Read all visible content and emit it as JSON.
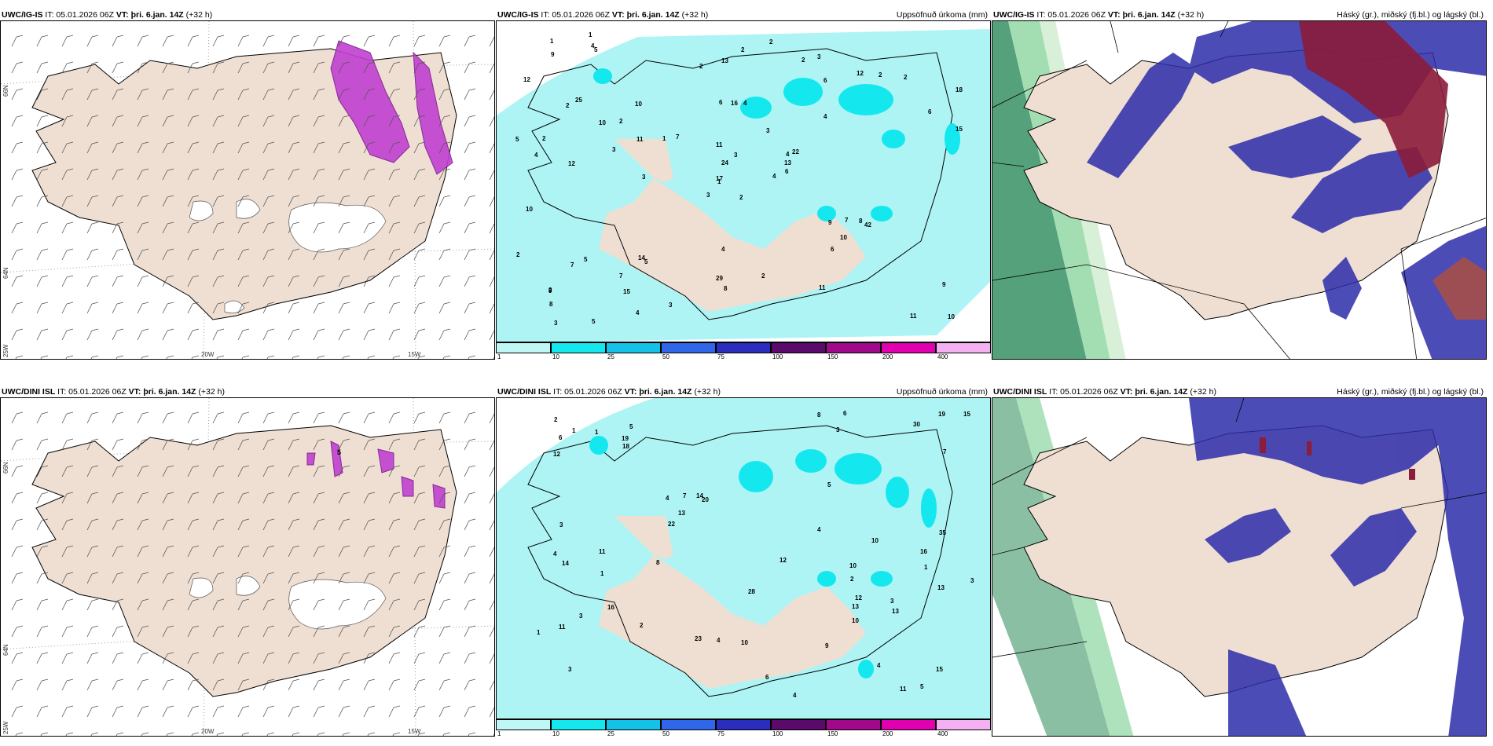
{
  "rows": [
    {
      "model": "UWC/IG-IS",
      "it": "IT: 05.01.2026 06Z",
      "vt_label": "VT:",
      "vt": "þri. 6.jan. 14Z",
      "lead": "(+32 h)"
    },
    {
      "model": "UWC/DINI ISL",
      "it": "IT: 05.01.2026 06Z",
      "vt_label": "VT:",
      "vt": "þri. 6.jan. 14Z",
      "lead": "(+32 h)"
    }
  ],
  "panel_titles": {
    "precip": "Uppsöfnuð úrkoma (mm)",
    "cloud": "Háský (gr.), miðský (fj.bl.) og lágský (bl.)"
  },
  "axis_labels": {
    "lon_20w": "20W",
    "lon_15w": "15W",
    "lat_66n": "66N",
    "lat_64n": "64N",
    "lon_25w": "25W"
  },
  "colorbar": {
    "ticks": [
      "1",
      "10",
      "25",
      "50",
      "75",
      "100",
      "150",
      "200",
      "400"
    ],
    "colors": [
      "#bff7f7",
      "#14e8ee",
      "#13c2e6",
      "#2f67e8",
      "#2a2dbd",
      "#5a0a6a",
      "#a00a8a",
      "#e000b0",
      "#f4b0f0"
    ]
  },
  "colors": {
    "land": "#efdfd2",
    "sea_wet": "#aef4f4",
    "wind_snow": "#c040d0",
    "high_cloud": "#8b1c3a",
    "mid_cloud": "#2d2daa",
    "low_cloud": "#2a8a5a"
  },
  "precip_top": [
    "2",
    "2",
    "1",
    "2",
    "4",
    "5",
    "3",
    "4",
    "6",
    "4",
    "5",
    "10",
    "12",
    "18",
    "3",
    "4",
    "5",
    "6",
    "3",
    "5",
    "7",
    "8",
    "15",
    "16",
    "22",
    "42",
    "25",
    "13",
    "4",
    "9",
    "15",
    "17",
    "29",
    "24",
    "10",
    "12",
    "14",
    "11",
    "9",
    "8",
    "2",
    "1",
    "3",
    "6",
    "4",
    "5",
    "13",
    "3",
    "8",
    "6",
    "7",
    "6",
    "12",
    "10",
    "11",
    "7",
    "4",
    "1",
    "2",
    "2",
    "2",
    "3",
    "2",
    "2",
    "2",
    "1",
    "2",
    "2",
    "3",
    "2",
    "4",
    "3",
    "7",
    "11",
    "9",
    "9",
    "10",
    "10",
    "11"
  ],
  "precip_bottom": [
    "2",
    "1",
    "3",
    "5",
    "20",
    "4",
    "11",
    "3",
    "4",
    "4",
    "12",
    "4",
    "6",
    "15",
    "23",
    "35",
    "28",
    "12",
    "14",
    "16",
    "15",
    "30",
    "22",
    "13",
    "8",
    "19",
    "12",
    "14",
    "18",
    "10",
    "6",
    "9",
    "13",
    "8",
    "16",
    "13",
    "13",
    "11",
    "10",
    "3",
    "7",
    "6",
    "5",
    "4",
    "3",
    "2",
    "1",
    "1",
    "4",
    "3",
    "3",
    "7",
    "19",
    "10",
    "10",
    "11",
    "5",
    "2",
    "1",
    "1"
  ]
}
